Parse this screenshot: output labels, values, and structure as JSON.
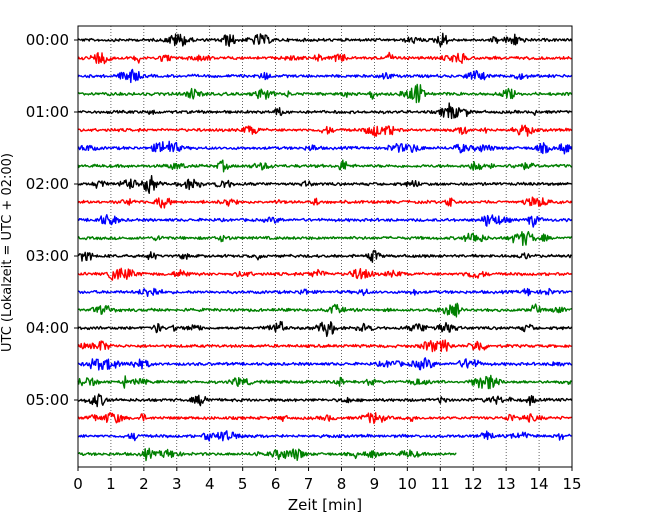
{
  "chart_data": {
    "type": "line",
    "xlabel": "Zeit  [min]",
    "ylabel": "UTC (Lokalzeit = UTC + 02:00)",
    "xlim": [
      0,
      15
    ],
    "x_ticks": [
      "0",
      "1",
      "2",
      "3",
      "4",
      "5",
      "6",
      "7",
      "8",
      "9",
      "10",
      "11",
      "12",
      "13",
      "14",
      "15"
    ],
    "y_tick_labels": [
      "00:00",
      "01:00",
      "02:00",
      "03:00",
      "04:00",
      "05:00"
    ],
    "trace_interval_min": 15,
    "trace_count": 24,
    "last_trace_end_min": 11.5,
    "grid_x": "dotted",
    "color_cycle": [
      "#000000",
      "#ff0000",
      "#0000ff",
      "#008000"
    ]
  }
}
